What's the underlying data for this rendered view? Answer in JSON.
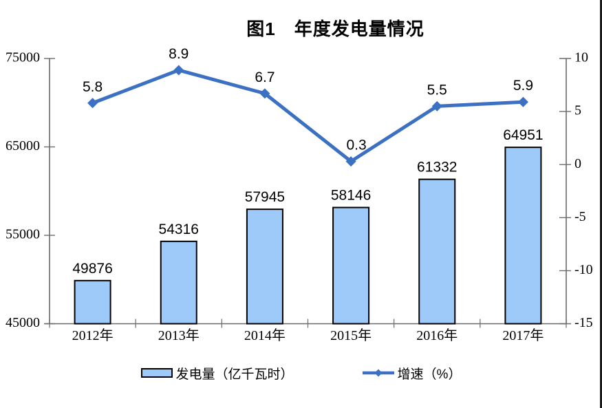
{
  "page": {
    "title": "图1　年度发电量情况"
  },
  "chart_data": {
    "type": "combo",
    "title": "图1　年度发电量情况",
    "categories": [
      "2012年",
      "2013年",
      "2014年",
      "2015年",
      "2016年",
      "2017年"
    ],
    "series": [
      {
        "name": "发电量（亿千瓦时）",
        "type": "bar",
        "axis": "left",
        "values": [
          49876,
          54316,
          57945,
          58146,
          61332,
          64951
        ],
        "labels": [
          "49876",
          "54316",
          "57945",
          "58146",
          "61332",
          "64951"
        ]
      },
      {
        "name": "增速（%）",
        "type": "line",
        "axis": "right",
        "values": [
          5.8,
          8.9,
          6.7,
          0.3,
          5.5,
          5.9
        ],
        "labels": [
          "5.8",
          "8.9",
          "6.7",
          "0.3",
          "5.5",
          "5.9"
        ],
        "marker": "diamond"
      }
    ],
    "left_axis": {
      "min": 45000,
      "max": 75000,
      "tick_step": 10000,
      "tick_labels": [
        "45000",
        "55000",
        "65000",
        "75000"
      ]
    },
    "right_axis": {
      "min": -15,
      "max": 10,
      "tick_step": 5,
      "tick_labels": [
        "-15",
        "-10",
        "-5",
        "0",
        "5",
        "10"
      ]
    },
    "grid": false,
    "legend_position": "bottom"
  },
  "legend": {
    "items": [
      {
        "label": "发电量（亿千瓦时）",
        "swatch": "bar"
      },
      {
        "label": "增速（%）",
        "swatch": "line"
      }
    ]
  },
  "colors": {
    "bar_fill": "#9DCAF9",
    "bar_border": "#000000",
    "line": "#3B70C2",
    "axis_line": "#6B6B6B",
    "text": "#000000",
    "background": "#FFFFFF"
  }
}
